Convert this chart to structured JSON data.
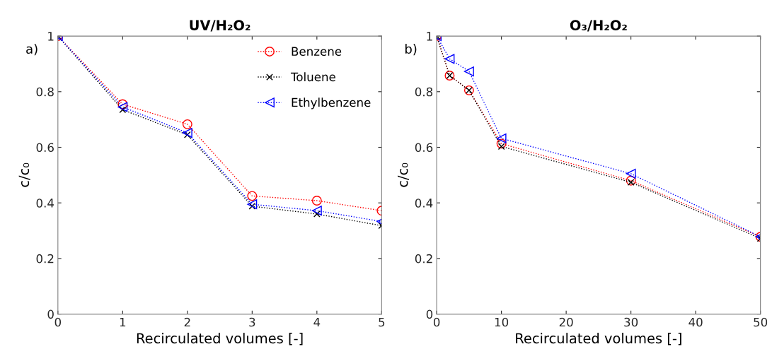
{
  "chart_data": [
    {
      "type": "line",
      "title": "UV/H₂O₂",
      "xlabel": "Recirculated volumes [-]",
      "ylabel": "c/c₀",
      "annotations": [
        "a)"
      ],
      "x": [
        0,
        1,
        2,
        3,
        4,
        5
      ],
      "xlim": [
        0,
        5
      ],
      "xticks": [
        0,
        1,
        2,
        3,
        4,
        5
      ],
      "ylim": [
        0,
        1
      ],
      "yticks": [
        0,
        0.2,
        0.4,
        0.6,
        0.8,
        1
      ],
      "grid": false,
      "legend": "top right",
      "line_style": "dotted",
      "series": [
        {
          "name": "Benzene",
          "color": "#ff0000",
          "marker": "circle",
          "values": [
            1,
            0.755,
            0.683,
            0.425,
            0.408,
            0.372
          ]
        },
        {
          "name": "Toluene",
          "color": "#000000",
          "marker": "cross",
          "values": [
            1,
            0.735,
            0.645,
            0.388,
            0.36,
            0.318
          ]
        },
        {
          "name": "Ethylbenzene",
          "color": "#0000ff",
          "marker": "triangle",
          "values": [
            1,
            0.745,
            0.652,
            0.395,
            0.372,
            0.333
          ]
        }
      ]
    },
    {
      "type": "line",
      "title": "O₃/H₂O₂",
      "xlabel": "Recirculated volumes [-]",
      "ylabel": "c/c₀",
      "annotations": [
        "b)"
      ],
      "x": [
        0,
        2,
        5,
        10,
        30,
        50
      ],
      "xlim": [
        0,
        50
      ],
      "xticks": [
        0,
        10,
        20,
        30,
        40,
        50
      ],
      "ylim": [
        0,
        1
      ],
      "yticks": [
        0,
        0.2,
        0.4,
        0.6,
        0.8,
        1
      ],
      "grid": false,
      "line_style": "dotted",
      "series": [
        {
          "color": "#ff0000",
          "marker": "circle",
          "values": [
            1,
            0.858,
            0.805,
            0.613,
            0.48,
            0.278
          ]
        },
        {
          "color": "#000000",
          "marker": "cross",
          "values": [
            1,
            0.858,
            0.805,
            0.603,
            0.474,
            0.272
          ]
        },
        {
          "color": "#0000ff",
          "marker": "triangle",
          "values": [
            1,
            0.918,
            0.873,
            0.632,
            0.505,
            0.278
          ]
        }
      ]
    }
  ]
}
